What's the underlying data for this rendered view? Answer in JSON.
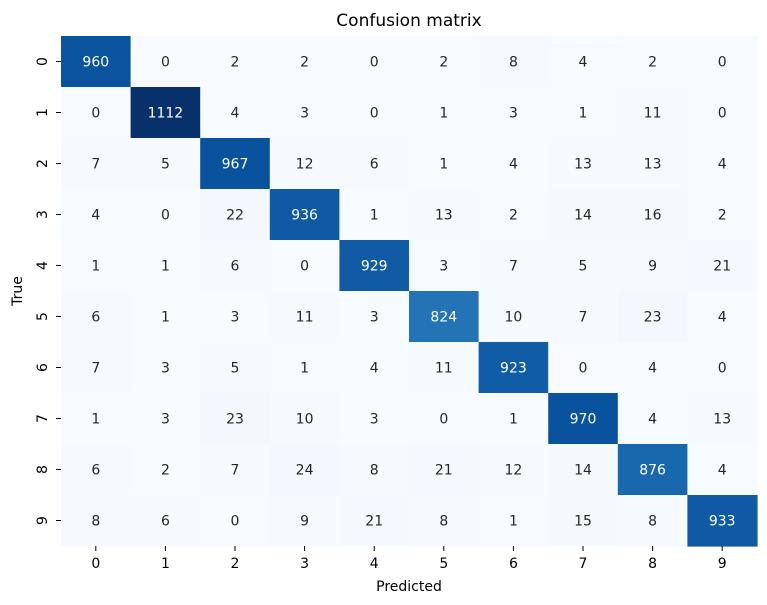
{
  "chart_data": {
    "type": "heatmap",
    "title": "Confusion matrix",
    "xlabel": "Predicted",
    "ylabel": "True",
    "x_categories": [
      "0",
      "1",
      "2",
      "3",
      "4",
      "5",
      "6",
      "7",
      "8",
      "9"
    ],
    "y_categories": [
      "0",
      "1",
      "2",
      "3",
      "4",
      "5",
      "6",
      "7",
      "8",
      "9"
    ],
    "colormap": "Blues",
    "grid": false,
    "legend": "none",
    "matrix": [
      [
        960,
        0,
        2,
        2,
        0,
        2,
        8,
        4,
        2,
        0
      ],
      [
        0,
        1112,
        4,
        3,
        0,
        1,
        3,
        1,
        11,
        0
      ],
      [
        7,
        5,
        967,
        12,
        6,
        1,
        4,
        13,
        13,
        4
      ],
      [
        4,
        0,
        22,
        936,
        1,
        13,
        2,
        14,
        16,
        2
      ],
      [
        1,
        1,
        6,
        0,
        929,
        3,
        7,
        5,
        9,
        21
      ],
      [
        6,
        1,
        3,
        11,
        3,
        824,
        10,
        7,
        23,
        4
      ],
      [
        7,
        3,
        5,
        1,
        4,
        11,
        923,
        0,
        4,
        0
      ],
      [
        1,
        3,
        23,
        10,
        3,
        0,
        1,
        970,
        4,
        13
      ],
      [
        6,
        2,
        7,
        24,
        8,
        21,
        12,
        14,
        876,
        4
      ],
      [
        8,
        6,
        0,
        9,
        21,
        8,
        1,
        15,
        8,
        933
      ]
    ]
  }
}
